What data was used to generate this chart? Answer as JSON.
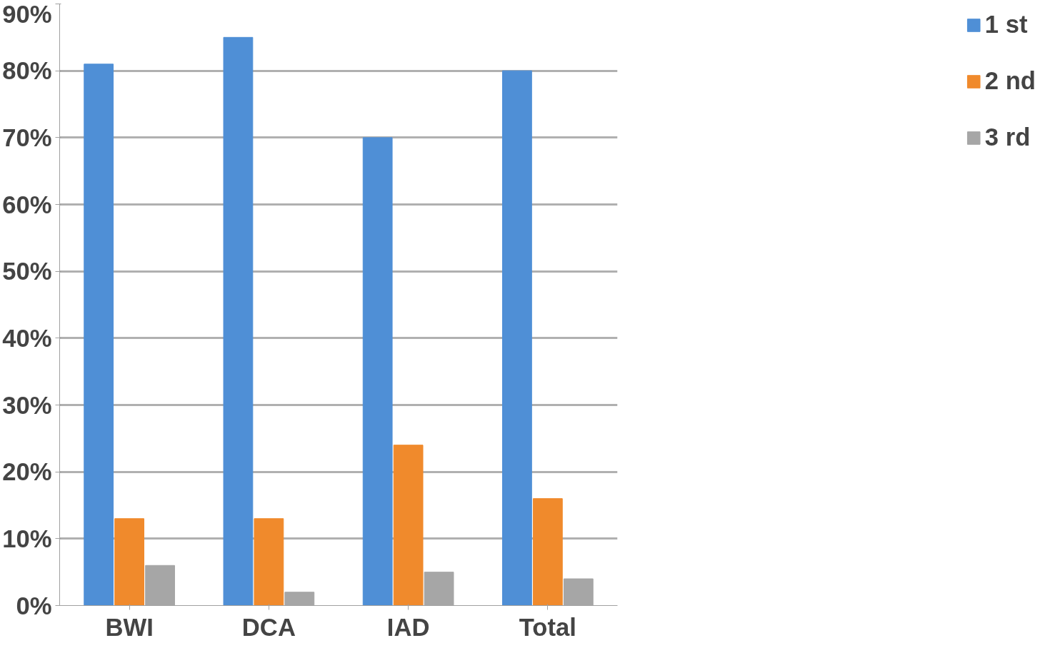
{
  "chart_data": {
    "type": "bar",
    "categories": [
      "BWI",
      "DCA",
      "IAD",
      "Total"
    ],
    "series": [
      {
        "name": "1 st",
        "color": "#4f8fd6",
        "values": [
          81,
          85,
          70,
          80
        ]
      },
      {
        "name": "2 nd",
        "color": "#f08a2c",
        "values": [
          13,
          13,
          24,
          16
        ]
      },
      {
        "name": "3 rd",
        "color": "#a6a6a6",
        "values": [
          6,
          2,
          5,
          4
        ]
      }
    ],
    "ylim": [
      0,
      90
    ],
    "yticks": [
      {
        "value": 0,
        "label": "0%"
      },
      {
        "value": 10,
        "label": "10%"
      },
      {
        "value": 20,
        "label": "20%"
      },
      {
        "value": 30,
        "label": "30%"
      },
      {
        "value": 40,
        "label": "40%"
      },
      {
        "value": 50,
        "label": "50%"
      },
      {
        "value": 60,
        "label": "60%"
      },
      {
        "value": 70,
        "label": "70%"
      },
      {
        "value": 80,
        "label": "80%"
      },
      {
        "value": 90,
        "label": "90%"
      }
    ],
    "grid": "y",
    "legend": "right"
  }
}
